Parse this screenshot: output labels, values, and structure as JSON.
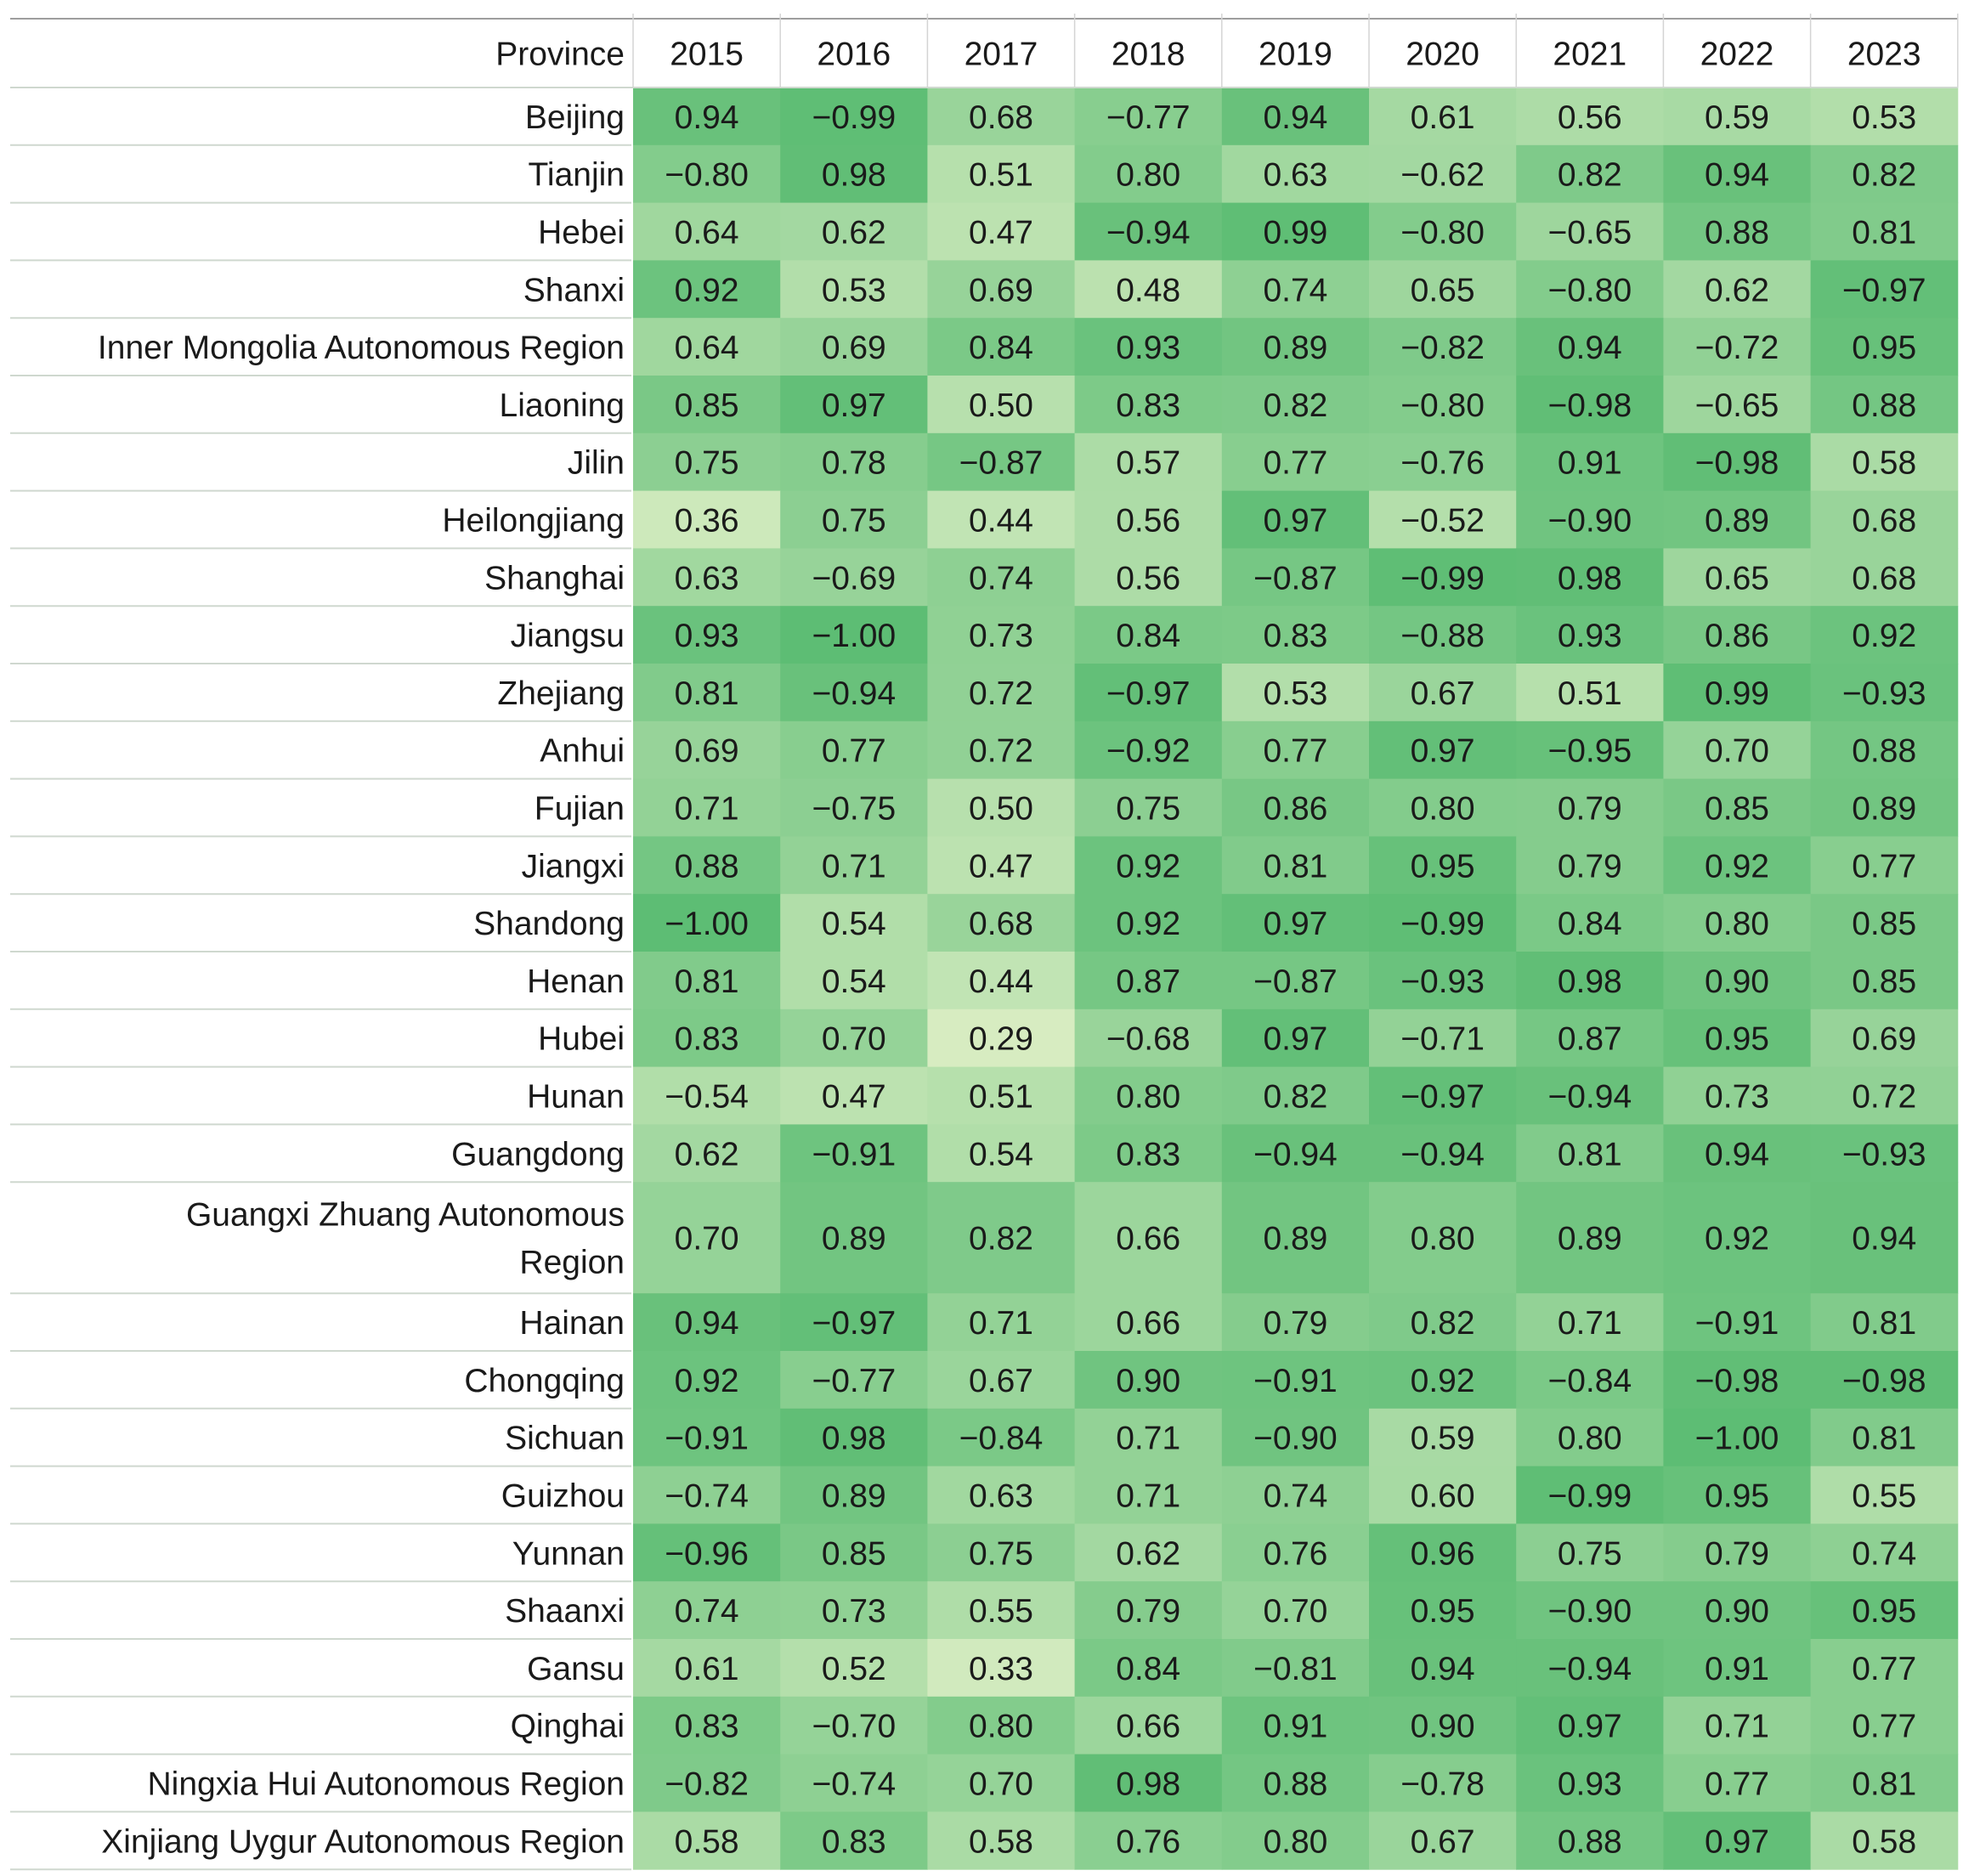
{
  "chart_data": {
    "type": "heatmap",
    "title": "",
    "corner_label": "Province",
    "columns": [
      "2015",
      "2016",
      "2017",
      "2018",
      "2019",
      "2020",
      "2021",
      "2022",
      "2023"
    ],
    "rows": [
      {
        "province": "Beijing",
        "values": [
          "0.94",
          "−0.99",
          "0.68",
          "−0.77",
          "0.94",
          "0.61",
          "0.56",
          "0.59",
          "0.53"
        ]
      },
      {
        "province": "Tianjin",
        "values": [
          "−0.80",
          "0.98",
          "0.51",
          "0.80",
          "0.63",
          "−0.62",
          "0.82",
          "0.94",
          "0.82"
        ]
      },
      {
        "province": "Hebei",
        "values": [
          "0.64",
          "0.62",
          "0.47",
          "−0.94",
          "0.99",
          "−0.80",
          "−0.65",
          "0.88",
          "0.81"
        ]
      },
      {
        "province": "Shanxi",
        "values": [
          "0.92",
          "0.53",
          "0.69",
          "0.48",
          "0.74",
          "0.65",
          "−0.80",
          "0.62",
          "−0.97"
        ]
      },
      {
        "province": "Inner Mongolia Autonomous Region",
        "values": [
          "0.64",
          "0.69",
          "0.84",
          "0.93",
          "0.89",
          "−0.82",
          "0.94",
          "−0.72",
          "0.95"
        ]
      },
      {
        "province": "Liaoning",
        "values": [
          "0.85",
          "0.97",
          "0.50",
          "0.83",
          "0.82",
          "−0.80",
          "−0.98",
          "−0.65",
          "0.88"
        ]
      },
      {
        "province": "Jilin",
        "values": [
          "0.75",
          "0.78",
          "−0.87",
          "0.57",
          "0.77",
          "−0.76",
          "0.91",
          "−0.98",
          "0.58"
        ]
      },
      {
        "province": "Heilongjiang",
        "values": [
          "0.36",
          "0.75",
          "0.44",
          "0.56",
          "0.97",
          "−0.52",
          "−0.90",
          "0.89",
          "0.68"
        ]
      },
      {
        "province": "Shanghai",
        "values": [
          "0.63",
          "−0.69",
          "0.74",
          "0.56",
          "−0.87",
          "−0.99",
          "0.98",
          "0.65",
          "0.68"
        ]
      },
      {
        "province": "Jiangsu",
        "values": [
          "0.93",
          "−1.00",
          "0.73",
          "0.84",
          "0.83",
          "−0.88",
          "0.93",
          "0.86",
          "0.92"
        ]
      },
      {
        "province": "Zhejiang",
        "values": [
          "0.81",
          "−0.94",
          "0.72",
          "−0.97",
          "0.53",
          "0.67",
          "0.51",
          "0.99",
          "−0.93"
        ]
      },
      {
        "province": "Anhui",
        "values": [
          "0.69",
          "0.77",
          "0.72",
          "−0.92",
          "0.77",
          "0.97",
          "−0.95",
          "0.70",
          "0.88"
        ]
      },
      {
        "province": "Fujian",
        "values": [
          "0.71",
          "−0.75",
          "0.50",
          "0.75",
          "0.86",
          "0.80",
          "0.79",
          "0.85",
          "0.89"
        ]
      },
      {
        "province": "Jiangxi",
        "values": [
          "0.88",
          "0.71",
          "0.47",
          "0.92",
          "0.81",
          "0.95",
          "0.79",
          "0.92",
          "0.77"
        ]
      },
      {
        "province": "Shandong",
        "values": [
          "−1.00",
          "0.54",
          "0.68",
          "0.92",
          "0.97",
          "−0.99",
          "0.84",
          "0.80",
          "0.85"
        ]
      },
      {
        "province": "Henan",
        "values": [
          "0.81",
          "0.54",
          "0.44",
          "0.87",
          "−0.87",
          "−0.93",
          "0.98",
          "0.90",
          "0.85"
        ]
      },
      {
        "province": "Hubei",
        "values": [
          "0.83",
          "0.70",
          "0.29",
          "−0.68",
          "0.97",
          "−0.71",
          "0.87",
          "0.95",
          "0.69"
        ]
      },
      {
        "province": "Hunan",
        "values": [
          "−0.54",
          "0.47",
          "0.51",
          "0.80",
          "0.82",
          "−0.97",
          "−0.94",
          "0.73",
          "0.72"
        ]
      },
      {
        "province": "Guangdong",
        "values": [
          "0.62",
          "−0.91",
          "0.54",
          "0.83",
          "−0.94",
          "−0.94",
          "0.81",
          "0.94",
          "−0.93"
        ]
      },
      {
        "province": "Guangxi Zhuang Autonomous Region",
        "province_lines": [
          "Guangxi Zhuang Autonomous",
          "Region"
        ],
        "values": [
          "0.70",
          "0.89",
          "0.82",
          "0.66",
          "0.89",
          "0.80",
          "0.89",
          "0.92",
          "0.94"
        ]
      },
      {
        "province": "Hainan",
        "values": [
          "0.94",
          "−0.97",
          "0.71",
          "0.66",
          "0.79",
          "0.82",
          "0.71",
          "−0.91",
          "0.81"
        ]
      },
      {
        "province": "Chongqing",
        "values": [
          "0.92",
          "−0.77",
          "0.67",
          "0.90",
          "−0.91",
          "0.92",
          "−0.84",
          "−0.98",
          "−0.98"
        ]
      },
      {
        "province": "Sichuan",
        "values": [
          "−0.91",
          "0.98",
          "−0.84",
          "0.71",
          "−0.90",
          "0.59",
          "0.80",
          "−1.00",
          "0.81"
        ]
      },
      {
        "province": "Guizhou",
        "values": [
          "−0.74",
          "0.89",
          "0.63",
          "0.71",
          "0.74",
          "0.60",
          "−0.99",
          "0.95",
          "0.55"
        ]
      },
      {
        "province": "Yunnan",
        "values": [
          "−0.96",
          "0.85",
          "0.75",
          "0.62",
          "0.76",
          "0.96",
          "0.75",
          "0.79",
          "0.74"
        ]
      },
      {
        "province": "Shaanxi",
        "values": [
          "0.74",
          "0.73",
          "0.55",
          "0.79",
          "0.70",
          "0.95",
          "−0.90",
          "0.90",
          "0.95"
        ]
      },
      {
        "province": "Gansu",
        "values": [
          "0.61",
          "0.52",
          "0.33",
          "0.84",
          "−0.81",
          "0.94",
          "−0.94",
          "0.91",
          "0.77"
        ]
      },
      {
        "province": "Qinghai",
        "values": [
          "0.83",
          "−0.70",
          "0.80",
          "0.66",
          "0.91",
          "0.90",
          "0.97",
          "0.71",
          "0.77"
        ]
      },
      {
        "province": "Ningxia Hui Autonomous Region",
        "values": [
          "−0.82",
          "−0.74",
          "0.70",
          "0.98",
          "0.88",
          "−0.78",
          "0.93",
          "0.77",
          "0.81"
        ]
      },
      {
        "province": "Xinjiang Uygur Autonomous Region",
        "values": [
          "0.58",
          "0.83",
          "0.58",
          "0.76",
          "0.80",
          "0.67",
          "0.88",
          "0.97",
          "0.58"
        ]
      }
    ],
    "color_scale": {
      "low": "#dbeec4",
      "high": "#5dbd74",
      "metric": "absolute value"
    },
    "grid_color": "#cfd8cf"
  }
}
